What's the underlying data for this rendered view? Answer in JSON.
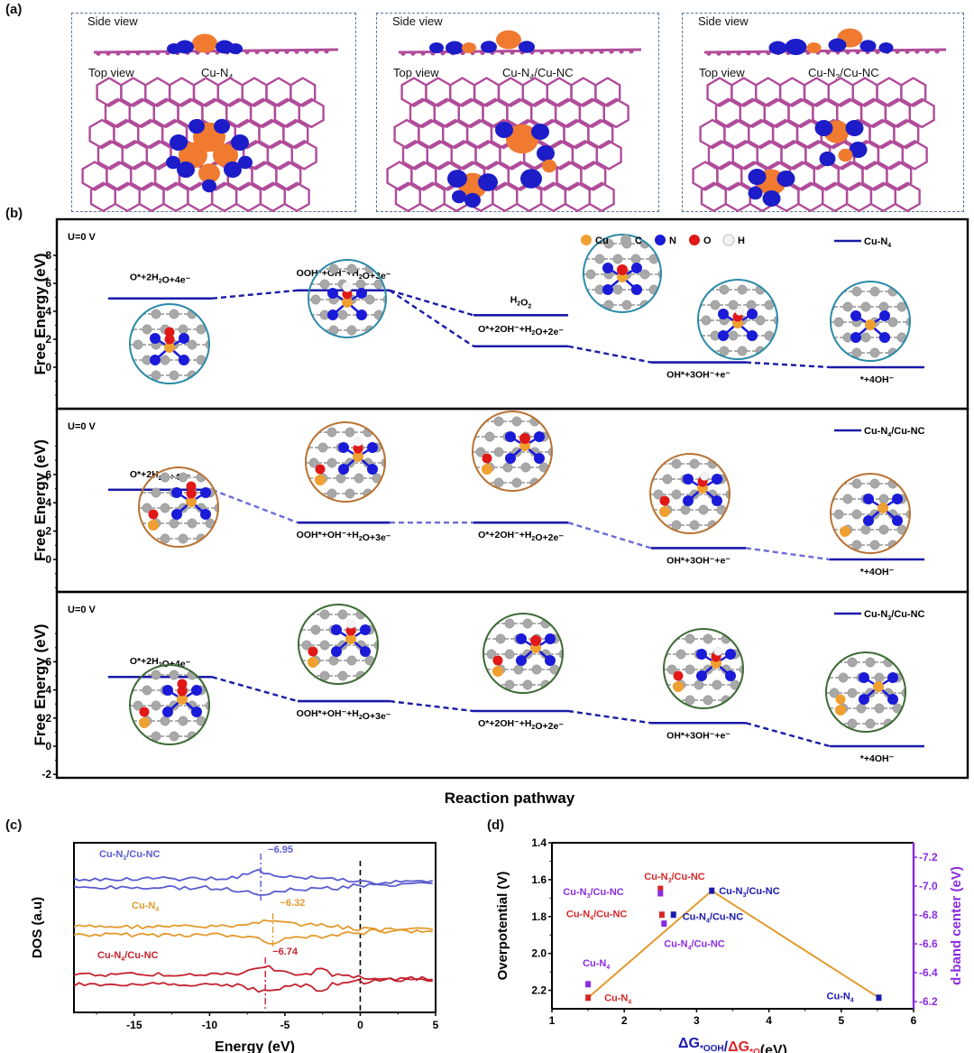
{
  "panels": {
    "a": {
      "label": "(a)",
      "structures": [
        {
          "side_label": "Side view",
          "top_label": "Top view",
          "name": "Cu-N",
          "name_sub": "4",
          "name_rest": ""
        },
        {
          "side_label": "Side view",
          "top_label": "Top view",
          "name": "Cu-N",
          "name_sub": "4",
          "name_rest": "/Cu-NC"
        },
        {
          "side_label": "Side view",
          "top_label": "Top view",
          "name": "Cu-N",
          "name_sub": "3",
          "name_rest": "/Cu-NC"
        }
      ]
    },
    "b": {
      "label": "(b)"
    },
    "c": {
      "label": "(c)"
    },
    "d": {
      "label": "(d)"
    }
  },
  "colors": {
    "level_line": "#1a1aa8",
    "connector_dark": "#1a1aa8",
    "connector_light": "#6b6bd8",
    "circle_cun4": "#2b8aa8",
    "circle_cun4_cunc": "#b87333",
    "circle_cun3_cunc": "#3d6b35",
    "atom_cu": "#f0a030",
    "atom_c": "#a8a8a8",
    "atom_n": "#1a1ad8",
    "atom_o": "#e01818",
    "atom_h": "#f4f4f4",
    "iso_pos": "#f07a30",
    "iso_neg": "#1c1cc8",
    "graphene": "#b04c9a",
    "dos_cun3": "#5b5bd0",
    "dos_cun4": "#e39a2e",
    "dos_cun4_cunc": "#c4222e",
    "volcano_line": "#e39a2e",
    "red_marker": "#d62828",
    "blue_marker": "#1a1ab0",
    "purple_marker": "#8a2be2",
    "purple_axis": "#8a2be2"
  },
  "chart_data": [
    {
      "id": "free-energy-diagram",
      "type": "line",
      "title": "",
      "xlabel": "Reaction pathway",
      "ylabel": "Free Energy (eV)",
      "legend_atoms": [
        {
          "symbol": "Cu",
          "color_key": "atom_cu"
        },
        {
          "symbol": "C",
          "color_key": "atom_c"
        },
        {
          "symbol": "N",
          "color_key": "atom_n"
        },
        {
          "symbol": "O",
          "color_key": "atom_o"
        },
        {
          "symbol": "H",
          "color_key": "atom_h"
        }
      ],
      "subplots": [
        {
          "condition": "U=0 V",
          "legend": {
            "name": "Cu-N",
            "sub": "4",
            "rest": ""
          },
          "ylim": [
            -2,
            8
          ],
          "yticks": [
            0,
            2,
            4,
            6,
            8
          ],
          "connector": "dark",
          "circle_key": "circle_cun4",
          "levels": [
            {
              "step": 1,
              "value": 4.92,
              "label": "O*+2H2O+4e⁻",
              "label_pos": "above"
            },
            {
              "step": 2,
              "value": 5.5,
              "label": "OOH*+OH⁻+H2O+3e⁻",
              "label_pos": "above"
            },
            {
              "step": 3,
              "value": 3.72,
              "label": "H2O2",
              "label_pos": "above"
            },
            {
              "step": 3,
              "value": 1.5,
              "label": "O*+2OH⁻+H2O+2e⁻",
              "label_pos": "above"
            },
            {
              "step": 4,
              "value": 0.35,
              "label": "OH*+3OH⁻+e⁻",
              "label_pos": "below"
            },
            {
              "step": 5,
              "value": 0.0,
              "label": "*+4OH⁻",
              "label_pos": "below"
            }
          ]
        },
        {
          "condition": "U=0 V",
          "legend": {
            "name": "Cu-N",
            "sub": "4",
            "rest": "/Cu-NC"
          },
          "ylim": [
            -2,
            8
          ],
          "yticks": [
            0,
            2,
            4,
            6
          ],
          "connector": "light",
          "circle_key": "circle_cun4_cunc",
          "levels": [
            {
              "step": 1,
              "value": 4.92,
              "label": "O*+2H2O+4e⁻",
              "label_pos": "above"
            },
            {
              "step": 2,
              "value": 2.6,
              "label": "OOH*+OH⁻+H2O+3e⁻",
              "label_pos": "below"
            },
            {
              "step": 3,
              "value": 2.6,
              "label": "O*+2OH⁻+H2O+2e⁻",
              "label_pos": "below"
            },
            {
              "step": 4,
              "value": 0.8,
              "label": "OH*+3OH⁻+e⁻",
              "label_pos": "below"
            },
            {
              "step": 5,
              "value": 0.0,
              "label": "*+4OH⁻",
              "label_pos": "below"
            }
          ]
        },
        {
          "condition": "U=0 V",
          "legend": {
            "name": "Cu-N",
            "sub": "3",
            "rest": "/Cu-NC"
          },
          "ylim": [
            -2,
            8
          ],
          "yticks": [
            -2,
            0,
            2,
            4,
            6
          ],
          "connector": "dark",
          "circle_key": "circle_cun3_cunc",
          "levels": [
            {
              "step": 1,
              "value": 4.92,
              "label": "O*+2H2O+4e⁻",
              "label_pos": "above"
            },
            {
              "step": 2,
              "value": 3.2,
              "label": "OOH*+OH⁻+H2O+3e⁻",
              "label_pos": "below"
            },
            {
              "step": 3,
              "value": 2.5,
              "label": "O*+2OH⁻+H2O+2e⁻",
              "label_pos": "below"
            },
            {
              "step": 4,
              "value": 1.65,
              "label": "OH*+3OH⁻+e⁻",
              "label_pos": "below"
            },
            {
              "step": 5,
              "value": 0.0,
              "label": "*+4OH⁻",
              "label_pos": "below"
            }
          ]
        }
      ]
    },
    {
      "id": "dos-plot",
      "type": "line",
      "title": "",
      "xlabel": "Energy (eV)",
      "ylabel": "DOS (a.u)",
      "xlim": [
        -19,
        5
      ],
      "xticks": [
        -15,
        -10,
        -5,
        0,
        5
      ],
      "fermi_level": 0,
      "series": [
        {
          "name": "Cu-N",
          "sub": "3",
          "rest": "/Cu-NC",
          "color_key": "dos_cun3",
          "d_band_center_label": "−6.95",
          "d_band_x": -6.6,
          "offset": 0.8,
          "seed": 3
        },
        {
          "name": "Cu-N",
          "sub": "4",
          "rest": "",
          "color_key": "dos_cun4",
          "d_band_center_label": "−6.32",
          "d_band_x": -5.8,
          "offset": 0.5,
          "seed": 7
        },
        {
          "name": "Cu-N",
          "sub": "4",
          "rest": "/Cu-NC",
          "color_key": "dos_cun4_cunc",
          "d_band_center_label": "−6.74",
          "d_band_x": -6.3,
          "offset": 0.2,
          "seed": 11
        }
      ]
    },
    {
      "id": "volcano-plot",
      "type": "scatter",
      "title": "",
      "xlabel_parts": [
        {
          "text": "ΔG",
          "color_key": "blue_marker"
        },
        {
          "text": "*OOH",
          "color_key": "blue_marker",
          "sub": true
        },
        {
          "text": "/",
          "color_key": "blue_marker"
        },
        {
          "text": "ΔG",
          "color_key": "red_marker"
        },
        {
          "text": "*O",
          "color_key": "red_marker",
          "sub": true
        },
        {
          "text": "(eV)",
          "color_key": "text"
        }
      ],
      "ylabel": "Overpotential (V)",
      "y2label": "d-band center (eV)",
      "xlim": [
        1,
        6
      ],
      "xticks": [
        1,
        2,
        3,
        4,
        5,
        6
      ],
      "ylim": [
        1.4,
        2.3
      ],
      "yticks": [
        1.4,
        1.6,
        1.8,
        2.0,
        2.2
      ],
      "y_inverted": true,
      "y2lim": [
        -7.3,
        -6.15
      ],
      "y2ticks": [
        -7.2,
        -7.0,
        -6.8,
        -6.6,
        -6.4,
        -6.2
      ],
      "volcano_line": [
        [
          1.5,
          2.24
        ],
        [
          3.21,
          1.66
        ],
        [
          5.52,
          2.24
        ]
      ],
      "points": [
        {
          "group": "ooh",
          "color_key": "blue_marker",
          "x": 3.21,
          "y": 1.66,
          "label": "Cu-N",
          "sub": "3",
          "rest": "/Cu-NC"
        },
        {
          "group": "ooh",
          "color_key": "blue_marker",
          "x": 2.68,
          "y": 1.79,
          "label": "Cu-N",
          "sub": "4",
          "rest": "/Cu-NC"
        },
        {
          "group": "ooh",
          "color_key": "blue_marker",
          "x": 5.52,
          "y": 2.24,
          "label": "Cu-N",
          "sub": "4",
          "rest": ""
        },
        {
          "group": "o",
          "color_key": "red_marker",
          "x": 2.5,
          "y": 1.65,
          "label": "Cu-N",
          "sub": "3",
          "rest": "/Cu-NC"
        },
        {
          "group": "o",
          "color_key": "red_marker",
          "x": 2.52,
          "y": 1.79,
          "label": "Cu-N",
          "sub": "4",
          "rest": "/Cu-NC"
        },
        {
          "group": "o",
          "color_key": "red_marker",
          "x": 1.5,
          "y": 2.24,
          "label": "Cu-N",
          "sub": "4",
          "rest": ""
        },
        {
          "group": "dband",
          "color_key": "purple_marker",
          "x": 2.5,
          "y2": -6.95,
          "label": "Cu-N",
          "sub": "3",
          "rest": "/Cu-NC"
        },
        {
          "group": "dband",
          "color_key": "purple_marker",
          "x": 2.55,
          "y2": -6.74,
          "label": "Cu-N",
          "sub": "4",
          "rest": "/Cu-NC"
        },
        {
          "group": "dband",
          "color_key": "purple_marker",
          "x": 1.5,
          "y2": -6.32,
          "label": "Cu-N",
          "sub": "4",
          "rest": ""
        }
      ]
    }
  ]
}
